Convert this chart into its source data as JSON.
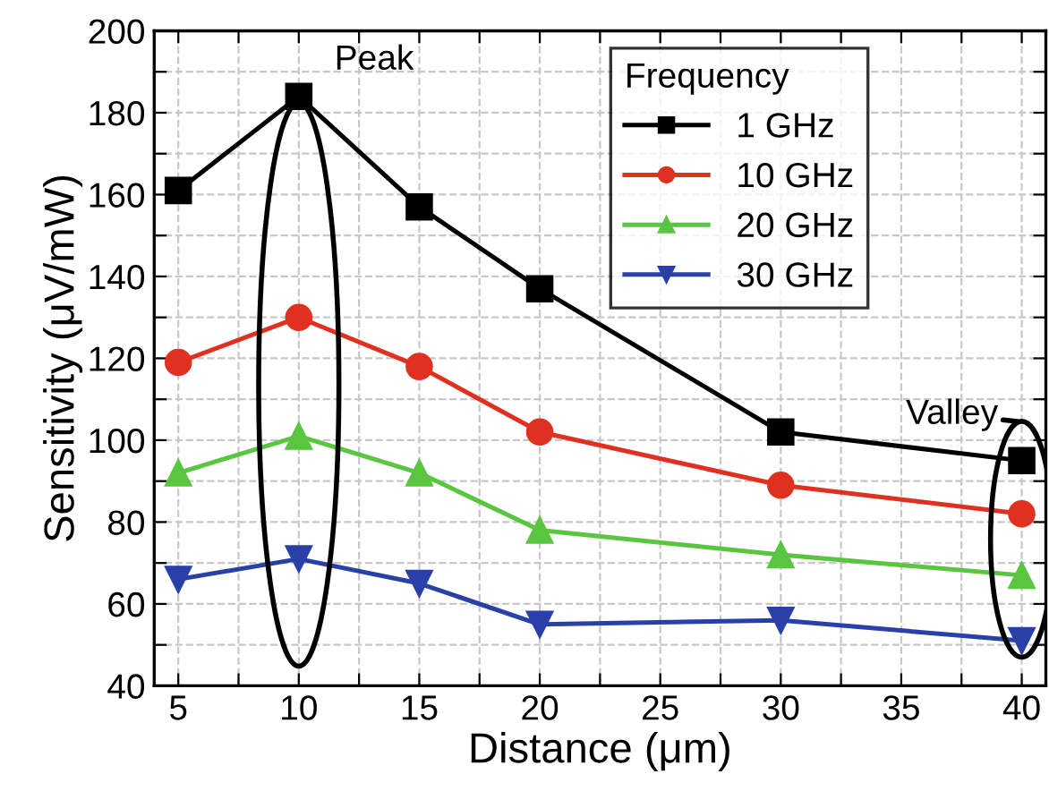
{
  "chart_data": {
    "type": "line",
    "xlabel": "Distance (μm)",
    "ylabel": "Sensitivity (μV/mW)",
    "legend_title": "Frequency",
    "x": [
      5,
      10,
      15,
      20,
      30,
      40
    ],
    "series": [
      {
        "name": "1 GHz",
        "color": "#000000",
        "marker": "square",
        "values": [
          161,
          184,
          157,
          137,
          102,
          95
        ]
      },
      {
        "name": "10 GHz",
        "color": "#e03020",
        "marker": "circle",
        "values": [
          119,
          130,
          118,
          102,
          89,
          82
        ]
      },
      {
        "name": "20 GHz",
        "color": "#5ac540",
        "marker": "triangle",
        "values": [
          92,
          101,
          92,
          78,
          72,
          67
        ]
      },
      {
        "name": "30 GHz",
        "color": "#2840a8",
        "marker": "triangle_down",
        "values": [
          66,
          71,
          65,
          55,
          56,
          51
        ]
      }
    ],
    "xlim": [
      4,
      41
    ],
    "xticks": [
      5,
      {
        "value": 7.5,
        "label": null
      },
      10,
      {
        "value": 12.5,
        "label": null
      },
      15,
      {
        "value": 17.5,
        "label": null
      },
      20,
      {
        "value": 22.5,
        "label": null
      },
      25,
      {
        "value": 27.5,
        "label": null
      },
      30,
      {
        "value": 32.5,
        "label": null
      },
      35,
      {
        "value": 37.5,
        "label": null
      },
      40
    ],
    "ylim": [
      40,
      200
    ],
    "yticks": [
      40,
      {
        "value": 50,
        "label": null
      },
      60,
      {
        "value": 70,
        "label": null
      },
      80,
      {
        "value": 90,
        "label": null
      },
      100,
      {
        "value": 110,
        "label": null
      },
      120,
      {
        "value": 130,
        "label": null
      },
      140,
      {
        "value": 150,
        "label": null
      },
      160,
      {
        "value": 170,
        "label": null
      },
      180,
      {
        "value": 190,
        "label": null
      },
      200
    ],
    "annotations": [
      {
        "text": "Peak",
        "x": 10,
        "y": 184
      },
      {
        "text": "Valley",
        "x": 40,
        "y": 95
      }
    ],
    "grid": true,
    "legend": "top right",
    "line_style": "solid"
  }
}
